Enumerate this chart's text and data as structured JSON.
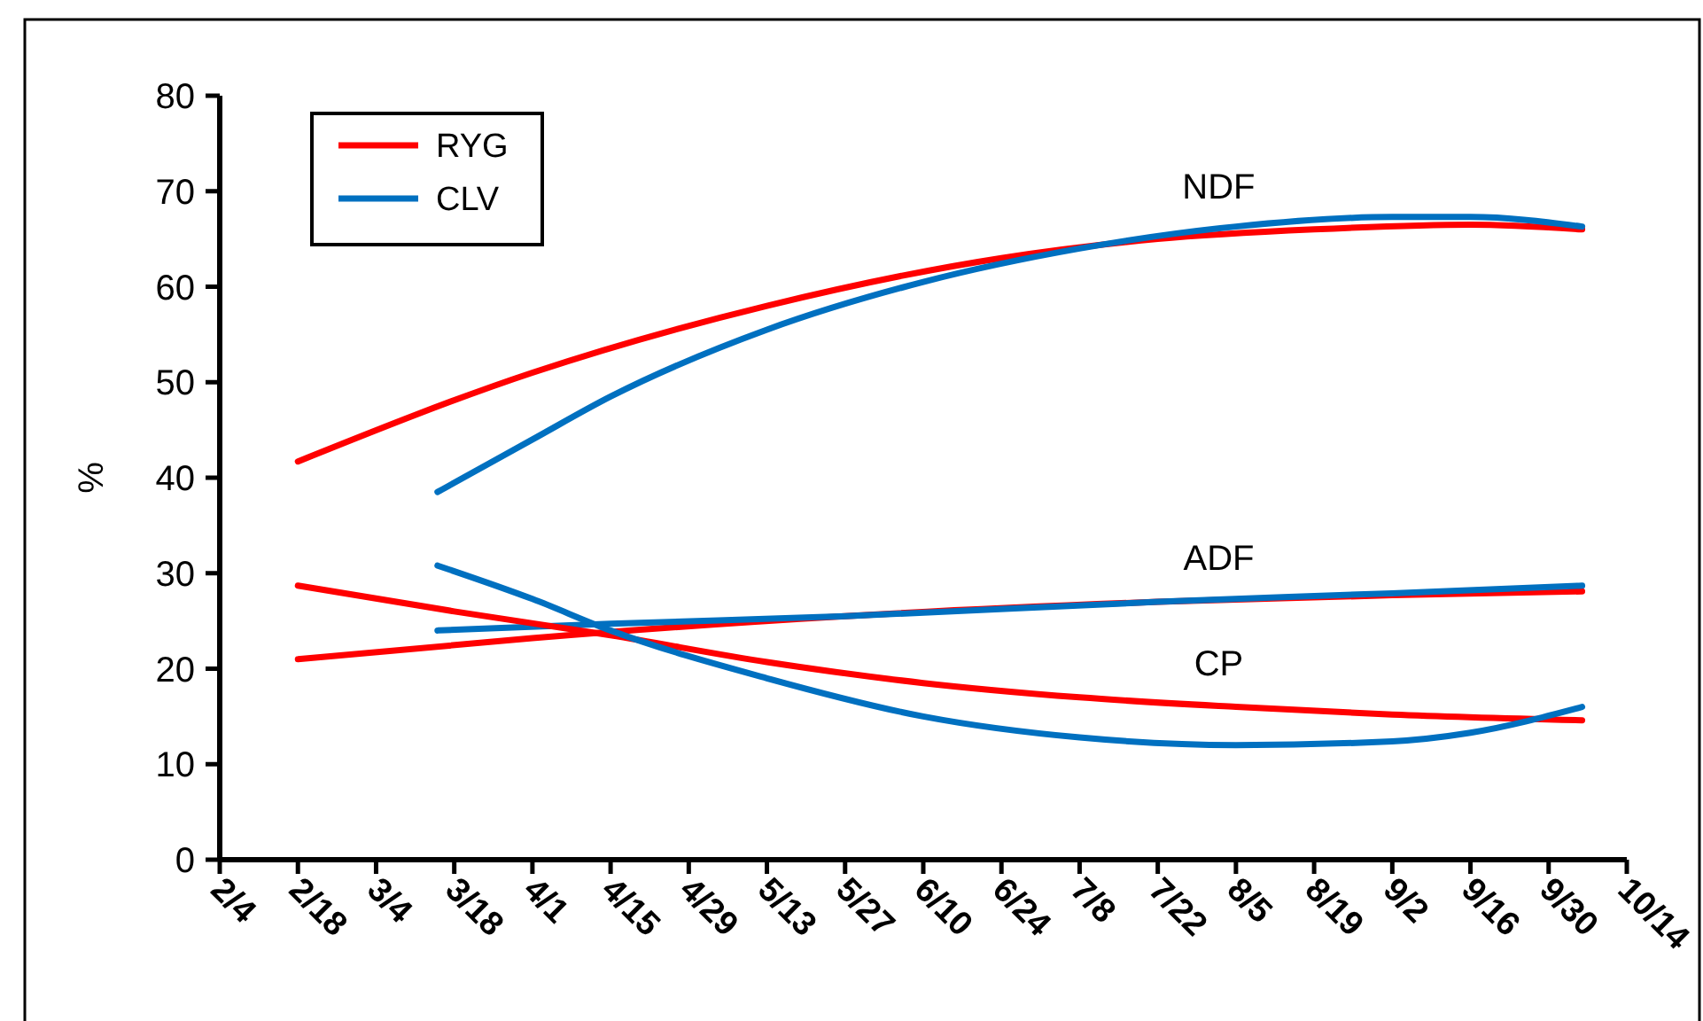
{
  "chart_data": {
    "type": "line",
    "ylabel": "%",
    "ylim": [
      0,
      80
    ],
    "yticks": [
      0,
      10,
      20,
      30,
      40,
      50,
      60,
      70,
      80
    ],
    "xlim": [
      "--02-04",
      "--10-14"
    ],
    "xticks": [
      {
        "value": "--02-04",
        "label": "2/4"
      },
      {
        "value": "--02-18",
        "label": "2/18"
      },
      {
        "value": "--03-04",
        "label": "3/4"
      },
      {
        "value": "--03-18",
        "label": "3/18"
      },
      {
        "value": "--04-01",
        "label": "4/1"
      },
      {
        "value": "--04-15",
        "label": "4/15"
      },
      {
        "value": "--04-29",
        "label": "4/29"
      },
      {
        "value": "--05-13",
        "label": "5/13"
      },
      {
        "value": "--05-27",
        "label": "5/27"
      },
      {
        "value": "--06-10",
        "label": "6/10"
      },
      {
        "value": "--06-24",
        "label": "6/24"
      },
      {
        "value": "--07-08",
        "label": "7/8"
      },
      {
        "value": "--07-22",
        "label": "7/22"
      },
      {
        "value": "--08-05",
        "label": "8/5"
      },
      {
        "value": "--08-19",
        "label": "8/19"
      },
      {
        "value": "--09-02",
        "label": "9/2"
      },
      {
        "value": "--09-16",
        "label": "9/16"
      },
      {
        "value": "--09-30",
        "label": "9/30"
      },
      {
        "value": "--10-14",
        "label": "10/14"
      }
    ],
    "grid": false,
    "legend": "top left",
    "marker": "none",
    "line_style": "solid",
    "series": [
      {
        "name": "RYG",
        "color": "#ff0000",
        "x": [
          "--02-18",
          "--04-01",
          "--05-13",
          "--06-24",
          "--07-22",
          "--08-19",
          "--09-16",
          "--10-06"
        ],
        "values": [
          41.7,
          51,
          58,
          63,
          65,
          66,
          66.5,
          66
        ]
      },
      {
        "name": "CLV",
        "color": "#0070c0",
        "x": [
          "--03-15",
          "--04-01",
          "--04-15",
          "--05-13",
          "--06-10",
          "--07-08",
          "--08-05",
          "--09-02",
          "--09-16",
          "--10-06"
        ],
        "values": [
          38.5,
          44,
          48.5,
          55.5,
          60.5,
          64,
          66.3,
          67.3,
          67.3,
          66.3
        ]
      },
      {
        "color": "#ff0000",
        "x": [
          "--02-18",
          "--04-01",
          "--05-27",
          "--07-22",
          "--09-02",
          "--10-06"
        ],
        "values": [
          21,
          23.2,
          25.5,
          27,
          27.7,
          28.1
        ]
      },
      {
        "color": "#0070c0",
        "x": [
          "--03-15",
          "--04-15",
          "--05-27",
          "--07-22",
          "--09-02",
          "--10-06"
        ],
        "values": [
          24,
          24.7,
          25.5,
          27,
          27.9,
          28.7
        ]
      },
      {
        "color": "#ff0000",
        "x": [
          "--02-18",
          "--03-18",
          "--04-15",
          "--05-13",
          "--06-10",
          "--07-08",
          "--08-05",
          "--09-02",
          "--10-06"
        ],
        "values": [
          28.7,
          26,
          23.5,
          20.7,
          18.5,
          17,
          16,
          15.2,
          14.6
        ]
      },
      {
        "color": "#0070c0",
        "x": [
          "--03-15",
          "--04-01",
          "--04-15",
          "--05-13",
          "--06-10",
          "--07-08",
          "--08-05",
          "--09-02",
          "--09-16",
          "--10-06"
        ],
        "values": [
          30.8,
          27.3,
          24,
          19,
          15,
          12.8,
          12,
          12.4,
          13.3,
          16
        ]
      }
    ],
    "annotations": [
      "NDF",
      "ADF",
      "CP"
    ]
  }
}
